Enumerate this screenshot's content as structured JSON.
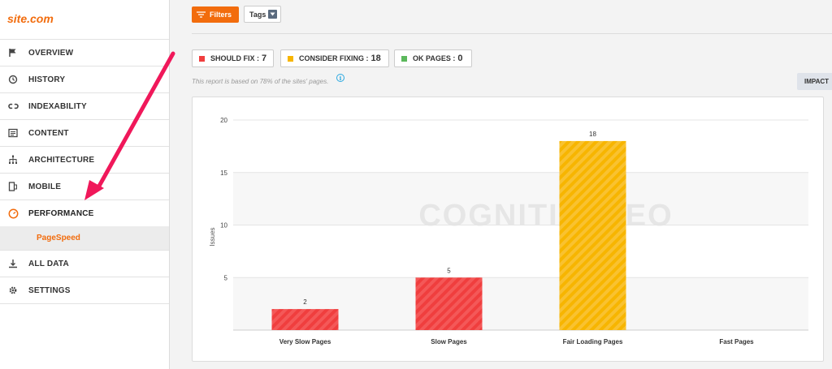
{
  "sidebar": {
    "logo": "site.com",
    "items": [
      {
        "label": "OVERVIEW",
        "icon": "flag-icon"
      },
      {
        "label": "HISTORY",
        "icon": "history-icon"
      },
      {
        "label": "INDEXABILITY",
        "icon": "link-icon"
      },
      {
        "label": "CONTENT",
        "icon": "content-icon"
      },
      {
        "label": "ARCHITECTURE",
        "icon": "sitemap-icon"
      },
      {
        "label": "MOBILE",
        "icon": "mobile-icon"
      },
      {
        "label": "PERFORMANCE",
        "icon": "gauge-icon"
      },
      {
        "label": "ALL DATA",
        "icon": "download-icon"
      },
      {
        "label": "SETTINGS",
        "icon": "gear-icon"
      }
    ],
    "sub_item": "PageSpeed"
  },
  "toolbar": {
    "filters_label": "Filters",
    "tags_label": "Tags"
  },
  "summary": {
    "should_fix_label": "SHOULD FIX :",
    "should_fix_count": "7",
    "consider_label": "CONSIDER FIXING :",
    "consider_count": "18",
    "ok_label": "OK PAGES :",
    "ok_count": "0"
  },
  "note": "This report is based on 78% of the sites' pages.",
  "impact_label": "IMPACT",
  "watermark": "COGNITIVESEO",
  "colors": {
    "accent": "#f26c0d",
    "should_fix": "#f03e3e",
    "consider": "#f7b500",
    "ok": "#5cb85c",
    "info": "#29a8e0"
  },
  "chart_data": {
    "type": "bar",
    "categories": [
      "Very Slow Pages",
      "Slow Pages",
      "Fair Loading Pages",
      "Fast Pages"
    ],
    "values": [
      2,
      5,
      18,
      0
    ],
    "data_labels": [
      "2",
      "5",
      "18",
      ""
    ],
    "bar_colors": [
      "#f03e3e",
      "#f03e3e",
      "#f7b500",
      "#5cb85c"
    ],
    "ylabel": "Issues",
    "ylim": [
      0,
      20
    ],
    "yticks": [
      "5",
      "10",
      "15",
      "20"
    ],
    "ytick_values": [
      5,
      10,
      15,
      20
    ],
    "grid": true
  }
}
